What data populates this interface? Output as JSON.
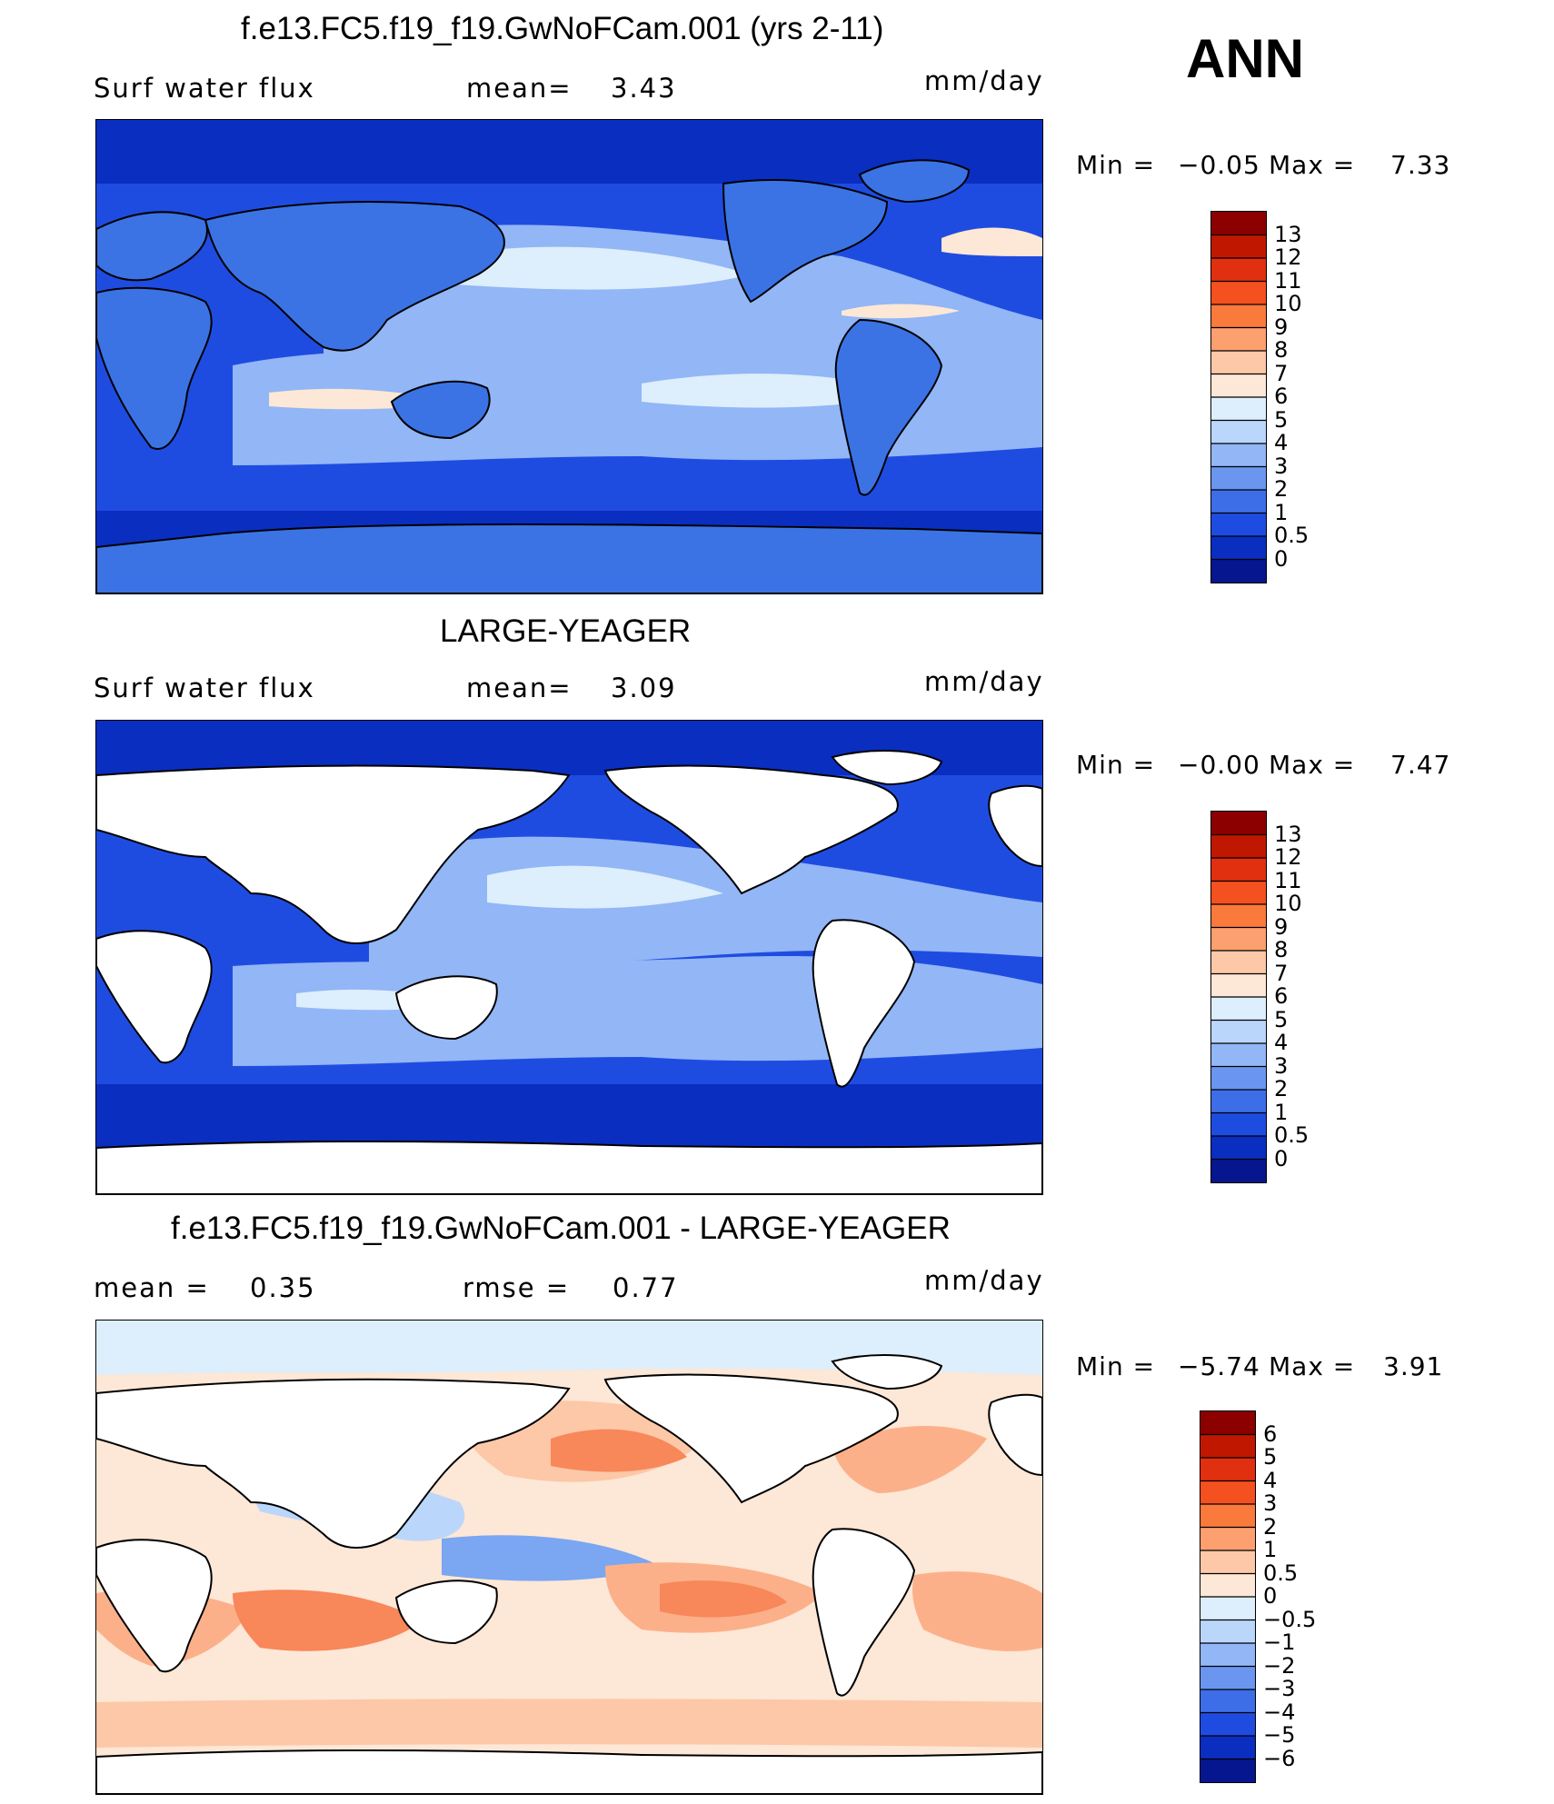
{
  "season": "ANN",
  "panels": [
    {
      "title": "f.e13.FC5.f19_f19.GwNoFCam.001 (yrs 2-11)",
      "variable": "Surf water flux",
      "stat1_label": "mean=",
      "stat1_value": "3.43",
      "units": "mm/day",
      "min_label": "Min =",
      "min_value": "−0.05",
      "max_label": "Max =",
      "max_value": "7.33",
      "colorbar_labels": [
        "13",
        "12",
        "11",
        "10",
        "9",
        "8",
        "7",
        "6",
        "5",
        "4",
        "3",
        "2",
        "1",
        "0.5",
        "0"
      ],
      "colorbar_colors": [
        "#8c0000",
        "#c01800",
        "#e03010",
        "#f55020",
        "#fa7a3c",
        "#fca070",
        "#fcc8a8",
        "#fde7d6",
        "#ddeefc",
        "#bad6fb",
        "#92b6f6",
        "#6a96f0",
        "#3d6ee8",
        "#1f4ce0",
        "#0a2ec0",
        "#06168e"
      ],
      "map_colors": {
        "land": "#3b73e4",
        "ocean_deep": "#0a2ec0",
        "ocean_mid": "#1f4ce0",
        "ocean_light": "#92b6f6",
        "ocean_pale": "#ddeefc",
        "warm": "#fde7d6"
      }
    },
    {
      "title": "LARGE-YEAGER",
      "variable": "Surf water flux",
      "stat1_label": "mean=",
      "stat1_value": "3.09",
      "units": "mm/day",
      "min_label": "Min =",
      "min_value": "−0.00",
      "max_label": "Max =",
      "max_value": "7.47",
      "colorbar_labels": [
        "13",
        "12",
        "11",
        "10",
        "9",
        "8",
        "7",
        "6",
        "5",
        "4",
        "3",
        "2",
        "1",
        "0.5",
        "0"
      ],
      "colorbar_colors": [
        "#8c0000",
        "#c01800",
        "#e03010",
        "#f55020",
        "#fa7a3c",
        "#fca070",
        "#fcc8a8",
        "#fde7d6",
        "#ddeefc",
        "#bad6fb",
        "#92b6f6",
        "#6a96f0",
        "#3d6ee8",
        "#1f4ce0",
        "#0a2ec0",
        "#06168e"
      ],
      "map_colors": {
        "land": "#ffffff",
        "ocean_deep": "#0a2ec0",
        "ocean_mid": "#1f4ce0",
        "ocean_light": "#92b6f6",
        "ocean_pale": "#ddeefc",
        "warm": "#fde7d6"
      }
    },
    {
      "title": "f.e13.FC5.f19_f19.GwNoFCam.001 - LARGE-YEAGER",
      "stat1_label": "mean =",
      "stat1_value": "0.35",
      "stat2_label": "rmse =",
      "stat2_value": "0.77",
      "units": "mm/day",
      "min_label": "Min =",
      "min_value": "−5.74",
      "max_label": "Max =",
      "max_value": "3.91",
      "colorbar_labels": [
        "6",
        "5",
        "4",
        "3",
        "2",
        "1",
        "0.5",
        "0",
        "−0.5",
        "−1",
        "−2",
        "−3",
        "−4",
        "−5",
        "−6"
      ],
      "colorbar_colors": [
        "#8c0000",
        "#c01800",
        "#e03010",
        "#f55020",
        "#fa7a3c",
        "#fca070",
        "#fcc8a8",
        "#fde7d6",
        "#ddeefc",
        "#bad6fb",
        "#92b6f6",
        "#6a96f0",
        "#3d6ee8",
        "#1f4ce0",
        "#0a2ec0",
        "#06168e"
      ],
      "map_colors": {
        "land": "#ffffff",
        "ocean_neutral": "#fde7d6",
        "positive": "#fcb08a",
        "strong_positive": "#f8875a",
        "negative": "#bad6fb",
        "strong_negative": "#7aa6f2"
      }
    }
  ]
}
